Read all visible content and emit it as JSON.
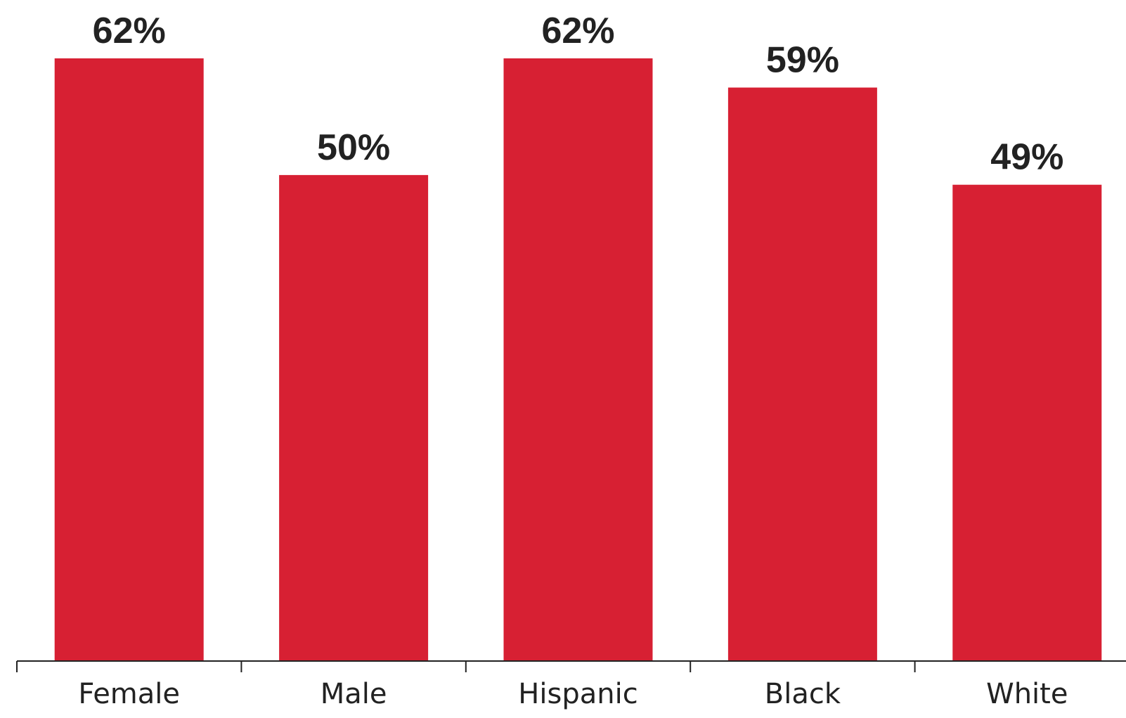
{
  "chart_data": {
    "type": "bar",
    "categories": [
      "Female",
      "Male",
      "Hispanic",
      "Black",
      "White"
    ],
    "values": [
      62,
      50,
      62,
      59,
      49
    ],
    "value_labels": [
      "62%",
      "50%",
      "62%",
      "59%",
      "49%"
    ],
    "unit": "%",
    "title": "",
    "xlabel": "",
    "ylabel": "",
    "ylim": [
      0,
      62
    ],
    "grid": false,
    "legend": "none",
    "colors": {
      "bar": "#D72033",
      "axis": "#222222",
      "text": "#222222"
    }
  }
}
